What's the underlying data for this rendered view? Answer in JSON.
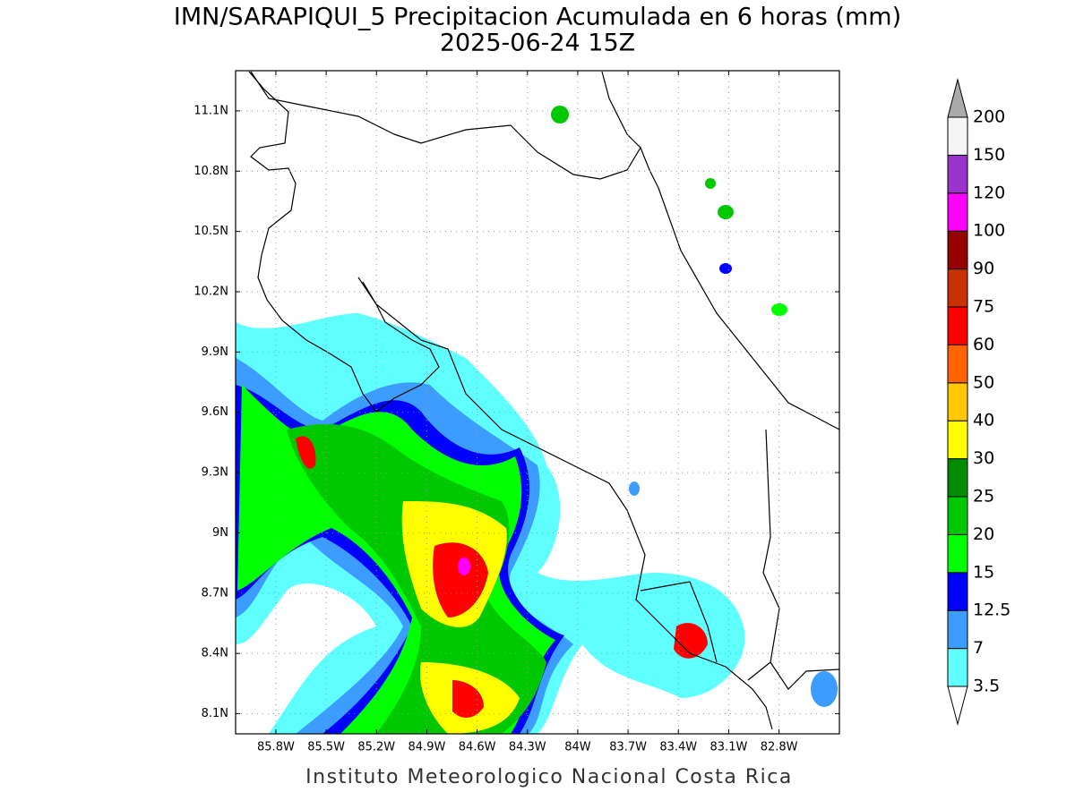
{
  "title": "IMN/SARAPIQUI_5 Precipitacion Acumulada en 6 horas (mm)",
  "subtitle": "2025-06-24 15Z",
  "footer": "Instituto Meteorologico Nacional Costa Rica",
  "map": {
    "lon_range": [
      -86.04,
      -82.44
    ],
    "lat_range": [
      8.0,
      11.3
    ],
    "lat_ticks": [
      {
        "value": 11.1,
        "label": "11.1N"
      },
      {
        "value": 10.8,
        "label": "10.8N"
      },
      {
        "value": 10.5,
        "label": "10.5N"
      },
      {
        "value": 10.2,
        "label": "10.2N"
      },
      {
        "value": 9.9,
        "label": "9.9N"
      },
      {
        "value": 9.6,
        "label": "9.6N"
      },
      {
        "value": 9.3,
        "label": "9.3N"
      },
      {
        "value": 9,
        "label": "9N"
      },
      {
        "value": 8.7,
        "label": "8.7N"
      },
      {
        "value": 8.4,
        "label": "8.4N"
      },
      {
        "value": 8.1,
        "label": "8.1N"
      }
    ],
    "lon_ticks": [
      {
        "value": -85.8,
        "label": "85.8W"
      },
      {
        "value": -85.5,
        "label": "85.5W"
      },
      {
        "value": -85.2,
        "label": "85.2W"
      },
      {
        "value": -84.9,
        "label": "84.9W"
      },
      {
        "value": -84.6,
        "label": "84.6W"
      },
      {
        "value": -84.3,
        "label": "84.3W"
      },
      {
        "value": -84,
        "label": "84W"
      },
      {
        "value": -83.7,
        "label": "83.7W"
      },
      {
        "value": -83.4,
        "label": "83.4W"
      },
      {
        "value": -83.1,
        "label": "83.1W"
      },
      {
        "value": -82.8,
        "label": "82.8W"
      }
    ]
  },
  "colorbar": {
    "levels": [
      3.5,
      7,
      12.5,
      15,
      20,
      25,
      30,
      40,
      50,
      60,
      75,
      90,
      100,
      120,
      150,
      200
    ],
    "colors": [
      "#5fffff",
      "#3c9cff",
      "#0000ff",
      "#00ff00",
      "#00c800",
      "#008c00",
      "#ffff00",
      "#ffc800",
      "#ff6400",
      "#ff0000",
      "#c83200",
      "#960000",
      "#ff00ff",
      "#9933cc",
      "#f5f5f5"
    ],
    "under_color": "#ffffff",
    "over_color": "#aaaaaa"
  }
}
